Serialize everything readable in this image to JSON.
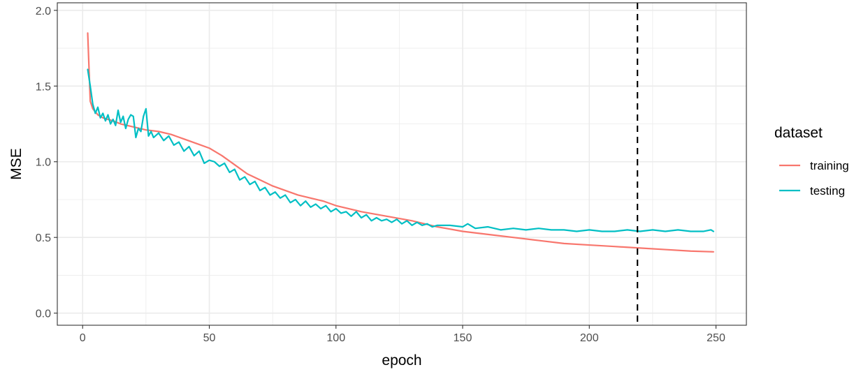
{
  "chart_data": {
    "type": "line",
    "xlabel": "epoch",
    "ylabel": "MSE",
    "xlim": [
      -10,
      262
    ],
    "ylim": [
      -0.08,
      2.05
    ],
    "x_ticks": [
      0,
      50,
      100,
      150,
      200,
      250
    ],
    "y_ticks": [
      0.0,
      0.5,
      1.0,
      1.5,
      2.0
    ],
    "x_tick_labels": [
      "0",
      "50",
      "100",
      "150",
      "200",
      "250"
    ],
    "y_tick_labels": [
      "0.0",
      "0.5",
      "1.0",
      "1.5",
      "2.0"
    ],
    "grid": true,
    "legend": {
      "title": "dataset",
      "position": "right"
    },
    "vline": {
      "x": 219,
      "style": "dashed",
      "color": "#000000"
    },
    "series": [
      {
        "name": "training",
        "color": "#F8766D",
        "x": [
          2,
          3,
          4,
          5,
          6,
          8,
          10,
          12,
          15,
          20,
          25,
          30,
          35,
          40,
          45,
          50,
          55,
          60,
          65,
          70,
          75,
          80,
          85,
          90,
          95,
          100,
          110,
          120,
          130,
          140,
          150,
          160,
          170,
          180,
          190,
          200,
          210,
          220,
          230,
          240,
          249
        ],
        "y": [
          1.85,
          1.4,
          1.35,
          1.33,
          1.31,
          1.29,
          1.28,
          1.27,
          1.25,
          1.23,
          1.21,
          1.2,
          1.18,
          1.15,
          1.12,
          1.09,
          1.04,
          0.98,
          0.92,
          0.88,
          0.84,
          0.81,
          0.78,
          0.76,
          0.74,
          0.71,
          0.67,
          0.64,
          0.61,
          0.57,
          0.54,
          0.52,
          0.5,
          0.48,
          0.46,
          0.45,
          0.44,
          0.43,
          0.42,
          0.41,
          0.405
        ]
      },
      {
        "name": "testing",
        "color": "#00BFC4",
        "x": [
          2,
          3,
          4,
          5,
          6,
          7,
          8,
          9,
          10,
          11,
          12,
          13,
          14,
          15,
          16,
          17,
          18,
          19,
          20,
          21,
          22,
          23,
          24,
          25,
          26,
          27,
          28,
          30,
          32,
          34,
          36,
          38,
          40,
          42,
          44,
          46,
          48,
          50,
          52,
          54,
          56,
          58,
          60,
          62,
          64,
          66,
          68,
          70,
          72,
          74,
          76,
          78,
          80,
          82,
          84,
          86,
          88,
          90,
          92,
          94,
          96,
          98,
          100,
          102,
          104,
          106,
          108,
          110,
          112,
          114,
          116,
          118,
          120,
          122,
          124,
          126,
          128,
          130,
          132,
          134,
          136,
          138,
          140,
          145,
          150,
          152,
          155,
          160,
          165,
          170,
          175,
          180,
          185,
          190,
          195,
          200,
          205,
          210,
          215,
          220,
          225,
          230,
          235,
          240,
          245,
          248,
          249
        ],
        "y": [
          1.61,
          1.5,
          1.38,
          1.32,
          1.36,
          1.29,
          1.32,
          1.27,
          1.31,
          1.25,
          1.28,
          1.24,
          1.34,
          1.26,
          1.3,
          1.22,
          1.28,
          1.31,
          1.3,
          1.16,
          1.22,
          1.2,
          1.3,
          1.35,
          1.17,
          1.2,
          1.16,
          1.19,
          1.14,
          1.17,
          1.11,
          1.13,
          1.07,
          1.1,
          1.04,
          1.07,
          0.99,
          1.01,
          1.0,
          0.97,
          0.99,
          0.93,
          0.95,
          0.88,
          0.9,
          0.85,
          0.87,
          0.81,
          0.83,
          0.78,
          0.8,
          0.76,
          0.78,
          0.73,
          0.75,
          0.71,
          0.74,
          0.7,
          0.72,
          0.69,
          0.71,
          0.67,
          0.69,
          0.66,
          0.67,
          0.64,
          0.67,
          0.63,
          0.65,
          0.61,
          0.63,
          0.61,
          0.62,
          0.6,
          0.62,
          0.59,
          0.61,
          0.58,
          0.6,
          0.58,
          0.59,
          0.57,
          0.58,
          0.58,
          0.57,
          0.59,
          0.56,
          0.57,
          0.55,
          0.56,
          0.55,
          0.56,
          0.55,
          0.55,
          0.54,
          0.55,
          0.54,
          0.54,
          0.55,
          0.54,
          0.55,
          0.54,
          0.55,
          0.54,
          0.54,
          0.55,
          0.54
        ]
      }
    ]
  }
}
